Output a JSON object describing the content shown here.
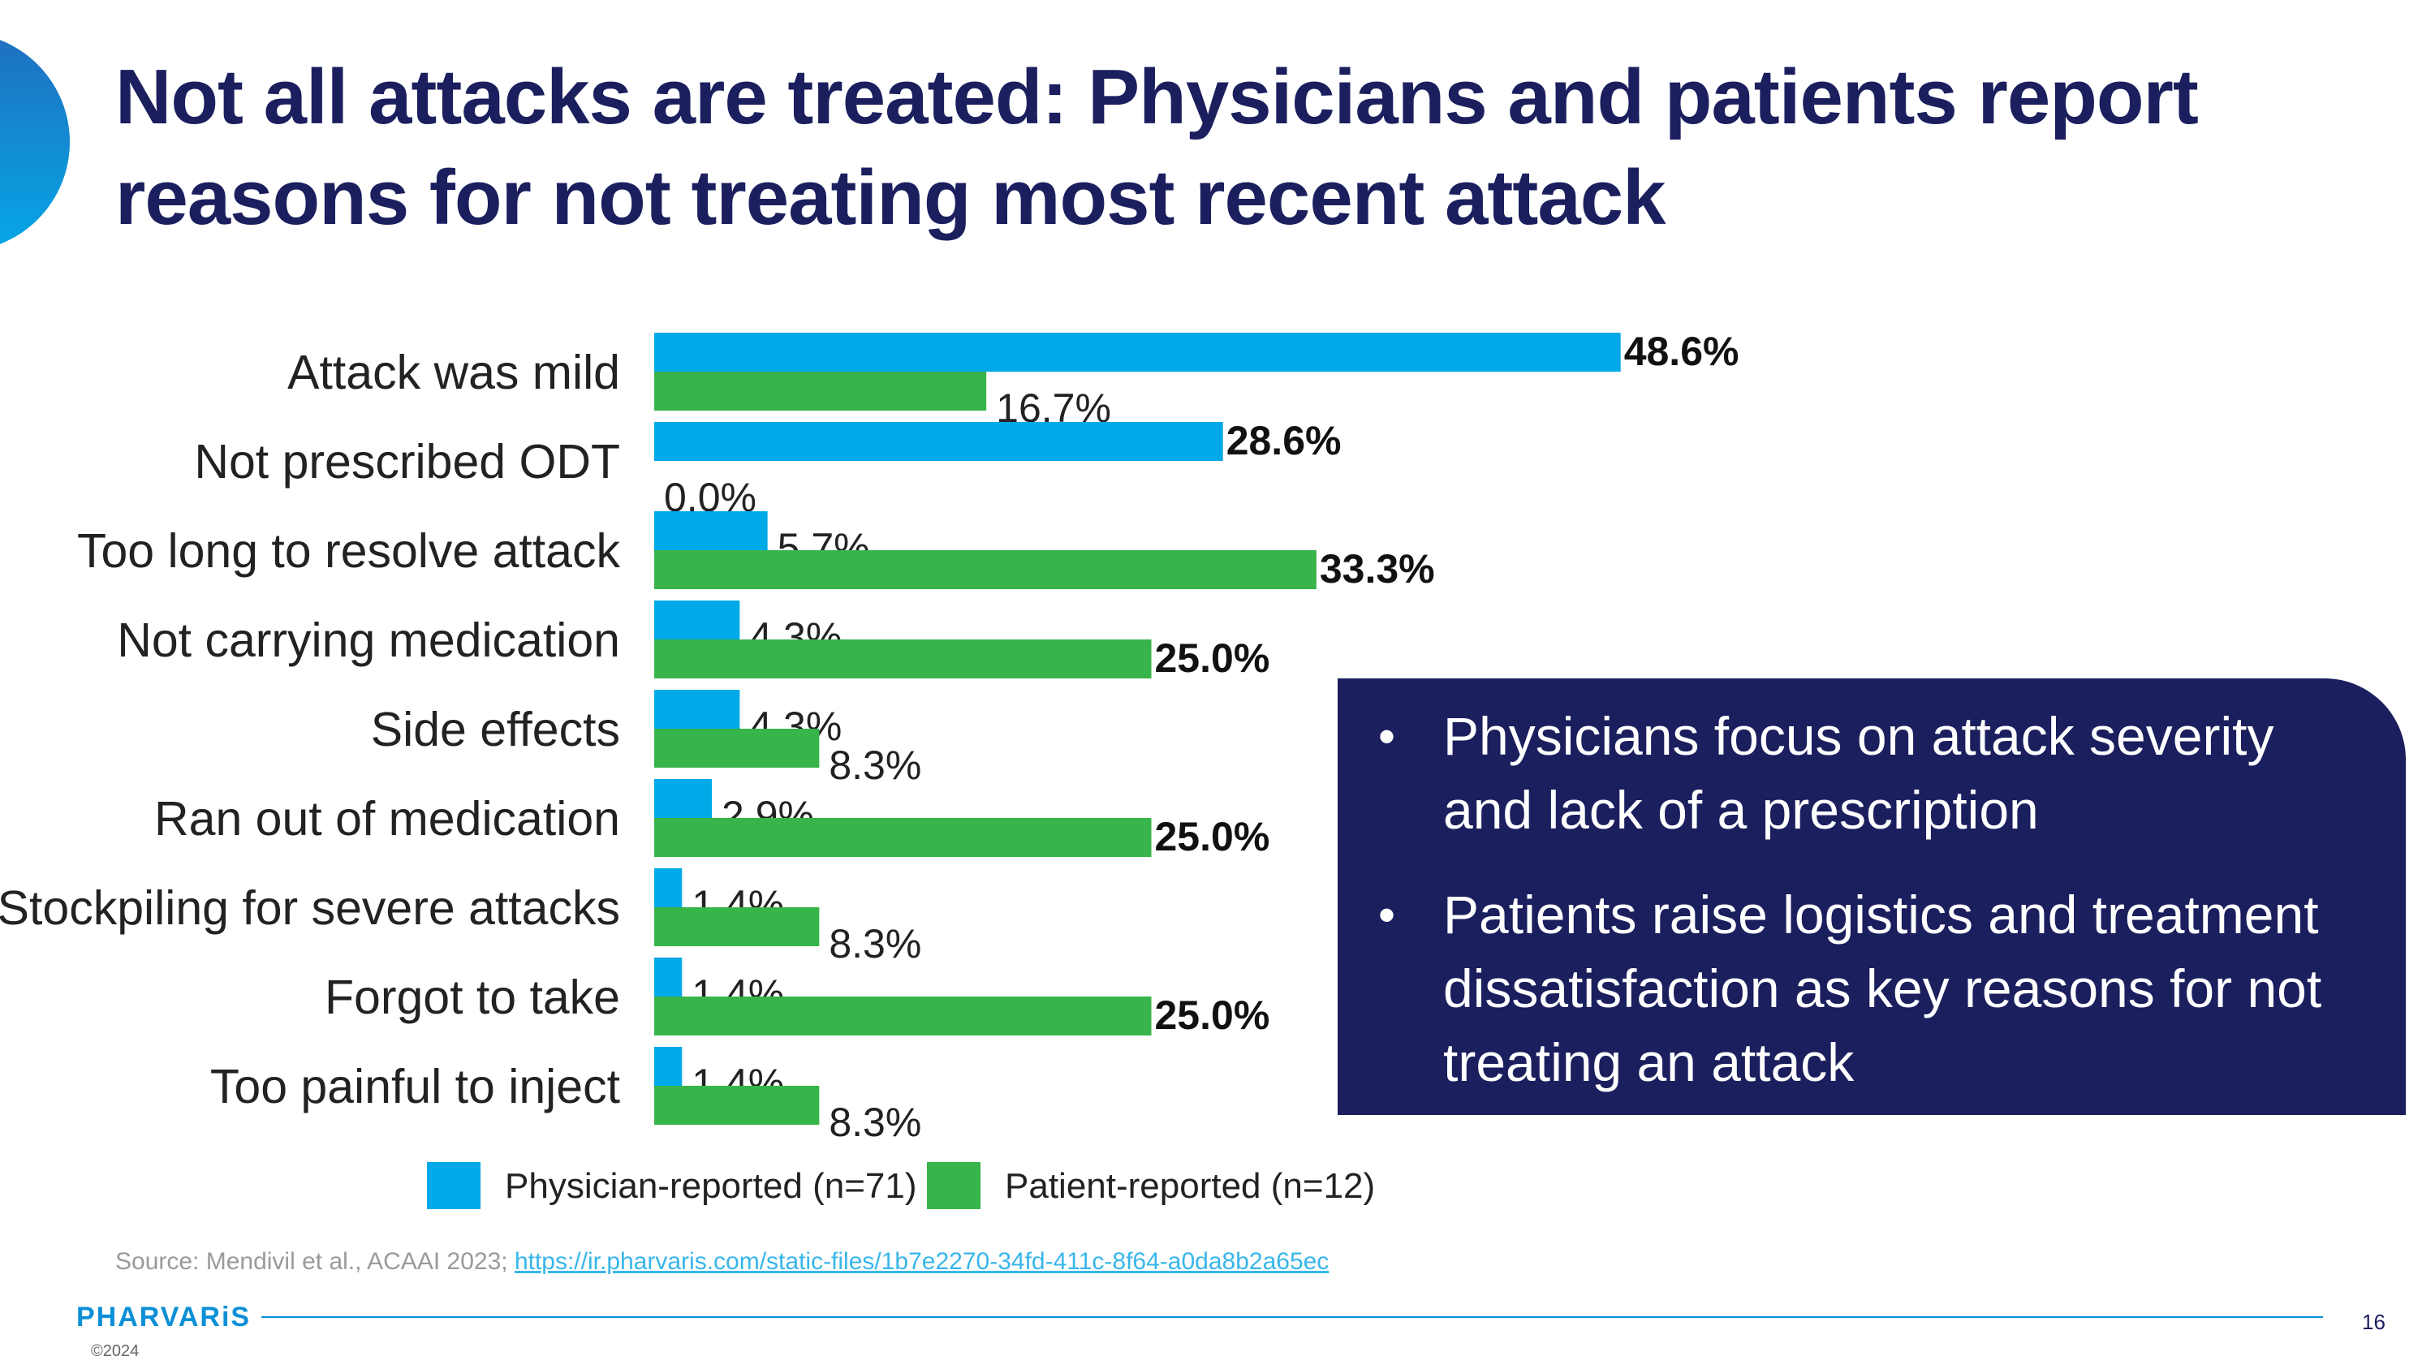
{
  "title": "Not all attacks are treated: Physicians and patients report reasons for not treating most recent attack",
  "chart_data": {
    "type": "bar",
    "orientation": "horizontal",
    "categories": [
      "Attack was mild",
      "Not prescribed ODT",
      "Too long to resolve attack",
      "Not carrying medication",
      "Side effects",
      "Ran out of medication",
      "Stockpiling for severe attacks",
      "Forgot to take",
      "Too painful to inject"
    ],
    "series": [
      {
        "name": "Physician-reported (n=71)",
        "color": "#00a9e8",
        "values": [
          48.6,
          28.6,
          5.7,
          4.3,
          4.3,
          2.9,
          1.4,
          1.4,
          1.4
        ],
        "labels": [
          "48.6%",
          "28.6%",
          "5.7%",
          "4.3%",
          "4.3%",
          "2.9%",
          "1.4%",
          "1.4%",
          "1.4%"
        ]
      },
      {
        "name": "Patient-reported (n=12)",
        "color": "#37b44a",
        "values": [
          16.7,
          0.0,
          33.3,
          25.0,
          8.3,
          25.0,
          8.3,
          25.0,
          8.3
        ],
        "labels": [
          "16.7%",
          "0.0%",
          "33.3%",
          "25.0%",
          "8.3%",
          "25.0%",
          "8.3%",
          "25.0%",
          "8.3%"
        ]
      }
    ],
    "emphasized_labels": [
      [
        true,
        false
      ],
      [
        true,
        false
      ],
      [
        false,
        true
      ],
      [
        false,
        true
      ],
      [
        false,
        false
      ],
      [
        false,
        true
      ],
      [
        false,
        false
      ],
      [
        false,
        true
      ],
      [
        false,
        false
      ]
    ],
    "legend_position": "bottom",
    "grid": false
  },
  "callout": {
    "bullet": "•",
    "points": [
      "Physicians focus on attack severity and lack of a prescription",
      "Patients raise logistics and treatment dissatisfaction as key reasons for not treating an attack"
    ]
  },
  "source": {
    "prefix": "Source: Mendivil et al., ACAAI 2023; ",
    "link": "https://ir.pharvaris.com/static-files/1b7e2270-34fd-411c-8f64-a0da8b2a65ec"
  },
  "footer": {
    "logo": "PHARVARiS",
    "copyright": "©2024",
    "page_number": "16"
  }
}
